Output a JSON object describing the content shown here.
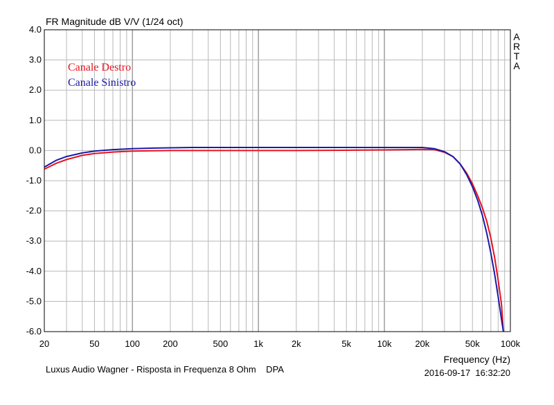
{
  "chart_data": {
    "type": "line",
    "title": "FR Magnitude dB V/V (1/24 oct)",
    "xlabel": "Frequency (Hz)",
    "x_scale": "log",
    "xlim": [
      20,
      100000
    ],
    "ylim": [
      -6.0,
      4.0
    ],
    "x_ticks": [
      20,
      50,
      100,
      200,
      500,
      1000,
      2000,
      5000,
      10000,
      20000,
      50000,
      100000
    ],
    "x_tick_labels": [
      "20",
      "50",
      "100",
      "200",
      "500",
      "1k",
      "2k",
      "5k",
      "10k",
      "20k",
      "50k",
      "100k"
    ],
    "y_ticks": [
      4,
      3,
      2,
      1,
      0,
      -1,
      -2,
      -3,
      -4,
      -5,
      -6
    ],
    "y_tick_labels": [
      "4.0",
      "3.0",
      "2.0",
      "1.0",
      "0.0",
      "-1.0",
      "-2.0",
      "-3.0",
      "-4.0",
      "-5.0",
      "-6.0"
    ],
    "grid": true,
    "legend_position": "top-left",
    "side_label": "ARTA",
    "footer_left": "Luxus Audio Wagner - Risposta in Frequenza 8 Ohm    DPA",
    "footer_right": "2016-09-17  16:32:20",
    "series": [
      {
        "name": "Canale Destro",
        "color": "#e8101c",
        "x": [
          20,
          25,
          30,
          40,
          50,
          70,
          100,
          150,
          200,
          300,
          500,
          1000,
          2000,
          5000,
          10000,
          15000,
          20000,
          25000,
          30000,
          35000,
          40000,
          45000,
          50000,
          55000,
          60000,
          65000,
          70000,
          75000,
          80000,
          85000,
          88000
        ],
        "y": [
          -0.62,
          -0.42,
          -0.3,
          -0.16,
          -0.1,
          -0.05,
          -0.02,
          -0.01,
          0.0,
          0.0,
          0.0,
          0.0,
          0.0,
          0.01,
          0.02,
          0.03,
          0.04,
          0.03,
          -0.06,
          -0.2,
          -0.45,
          -0.75,
          -1.1,
          -1.5,
          -1.9,
          -2.35,
          -2.9,
          -3.55,
          -4.3,
          -5.1,
          -6.0
        ]
      },
      {
        "name": "Canale Sinistro",
        "color": "#1a1aa8",
        "x": [
          20,
          25,
          30,
          40,
          50,
          70,
          100,
          150,
          200,
          300,
          500,
          1000,
          2000,
          5000,
          10000,
          15000,
          20000,
          25000,
          30000,
          35000,
          40000,
          45000,
          50000,
          55000,
          60000,
          65000,
          70000,
          75000,
          80000,
          85000,
          88000
        ],
        "y": [
          -0.55,
          -0.32,
          -0.2,
          -0.08,
          -0.02,
          0.03,
          0.06,
          0.08,
          0.09,
          0.1,
          0.1,
          0.1,
          0.1,
          0.1,
          0.1,
          0.1,
          0.1,
          0.06,
          -0.04,
          -0.2,
          -0.45,
          -0.8,
          -1.2,
          -1.65,
          -2.15,
          -2.75,
          -3.4,
          -4.1,
          -4.85,
          -5.6,
          -6.0
        ]
      }
    ]
  }
}
